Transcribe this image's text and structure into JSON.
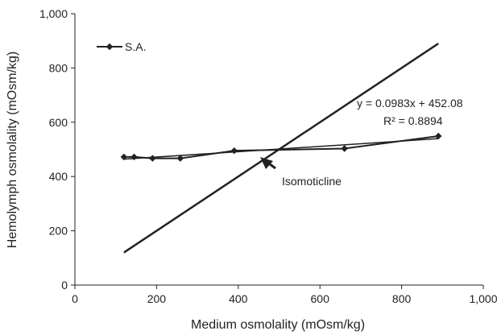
{
  "chart_data": {
    "type": "scatter",
    "xlabel": "Medium osmolality (mOsm/kg)",
    "ylabel": "Hemolymph osmolality (mOsm/kg)",
    "xlim": [
      0,
      1000
    ],
    "ylim": [
      0,
      1000
    ],
    "x_ticks": [
      0,
      200,
      400,
      600,
      800,
      1000
    ],
    "y_ticks": [
      0,
      200,
      400,
      600,
      800,
      1000
    ],
    "x_tick_labels": [
      "0",
      "200",
      "400",
      "600",
      "800",
      "1,000"
    ],
    "y_tick_labels": [
      "0",
      "200",
      "400",
      "600",
      "800",
      "1,000"
    ],
    "grid": false,
    "legend": {
      "position": "top-left",
      "entries": [
        "S.A."
      ]
    },
    "series": [
      {
        "name": "S.A.",
        "color": "#222222",
        "marker": "diamond",
        "x": [
          120,
          145,
          190,
          258,
          390,
          660,
          890
        ],
        "y": [
          472,
          472,
          467,
          467,
          495,
          503,
          549
        ]
      }
    ],
    "trendline": {
      "equation": "y = 0.0983x + 452.08",
      "r_squared": "R² = 0.8894",
      "slope": 0.0983,
      "intercept": 452.08,
      "x_range": [
        120,
        890
      ]
    },
    "isomoticline": {
      "label": "Isomoticline",
      "x_range": [
        120,
        890
      ]
    }
  }
}
